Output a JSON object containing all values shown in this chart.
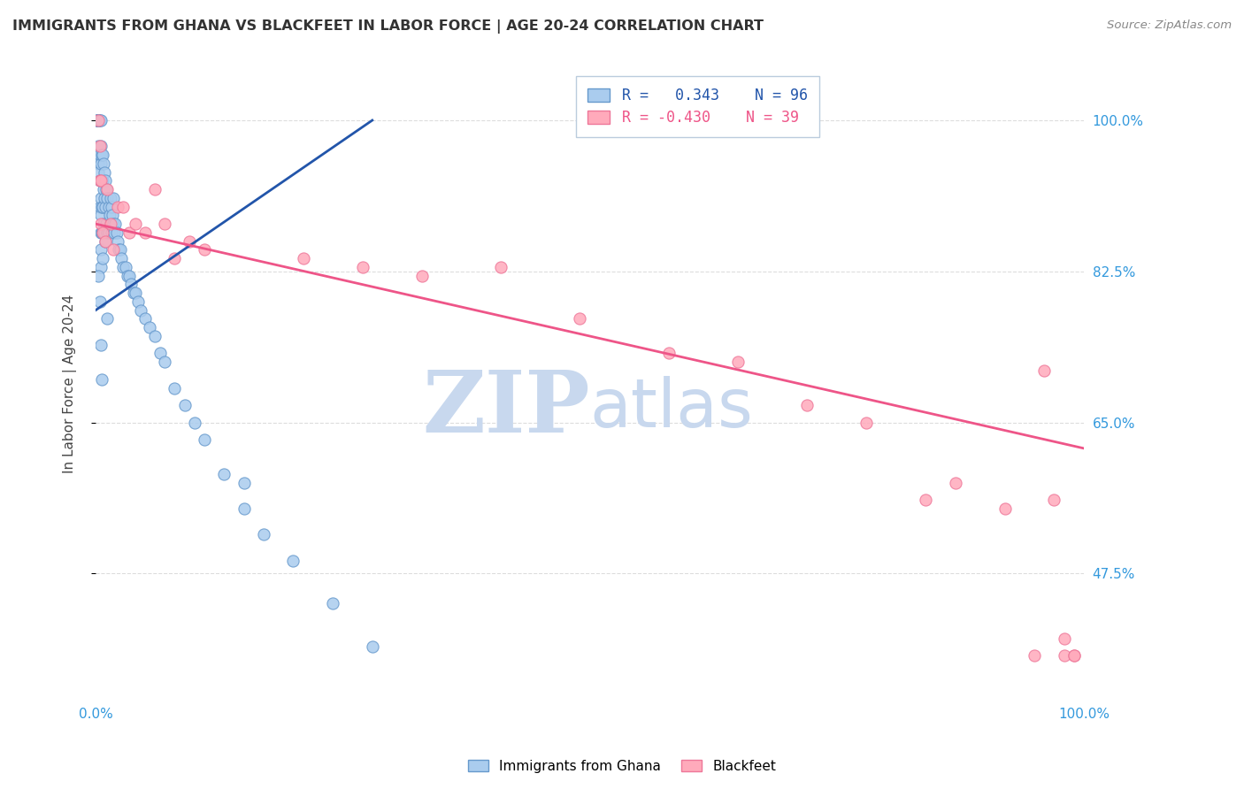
{
  "title": "IMMIGRANTS FROM GHANA VS BLACKFEET IN LABOR FORCE | AGE 20-24 CORRELATION CHART",
  "source": "Source: ZipAtlas.com",
  "ylabel": "In Labor Force | Age 20-24",
  "xlim": [
    0.0,
    1.0
  ],
  "ylim": [
    0.33,
    1.06
  ],
  "yticks": [
    0.475,
    0.65,
    0.825,
    1.0
  ],
  "ytick_labels": [
    "47.5%",
    "65.0%",
    "82.5%",
    "100.0%"
  ],
  "ghana_R": 0.343,
  "ghana_N": 96,
  "blackfeet_R": -0.43,
  "blackfeet_N": 39,
  "ghana_color": "#aaccee",
  "ghana_edge_color": "#6699cc",
  "ghana_line_color": "#2255aa",
  "blackfeet_color": "#ffaabb",
  "blackfeet_edge_color": "#ee7799",
  "blackfeet_line_color": "#ee5588",
  "watermark_zip_color": "#c8d8ee",
  "watermark_atlas_color": "#c8d8ee",
  "title_color": "#333333",
  "axis_label_color": "#444444",
  "right_tick_color": "#3399dd",
  "bottom_tick_color": "#3399dd",
  "grid_color": "#dddddd",
  "background_color": "#ffffff",
  "ghana_x": [
    0.002,
    0.002,
    0.002,
    0.002,
    0.003,
    0.003,
    0.003,
    0.003,
    0.003,
    0.003,
    0.003,
    0.003,
    0.003,
    0.003,
    0.004,
    0.004,
    0.004,
    0.004,
    0.005,
    0.005,
    0.005,
    0.005,
    0.005,
    0.005,
    0.005,
    0.005,
    0.005,
    0.006,
    0.006,
    0.006,
    0.006,
    0.007,
    0.007,
    0.007,
    0.007,
    0.007,
    0.008,
    0.008,
    0.008,
    0.009,
    0.009,
    0.009,
    0.01,
    0.01,
    0.01,
    0.011,
    0.011,
    0.012,
    0.012,
    0.013,
    0.013,
    0.014,
    0.015,
    0.015,
    0.016,
    0.016,
    0.017,
    0.018,
    0.018,
    0.019,
    0.02,
    0.021,
    0.022,
    0.023,
    0.025,
    0.026,
    0.028,
    0.03,
    0.032,
    0.034,
    0.036,
    0.038,
    0.04,
    0.043,
    0.046,
    0.05,
    0.055,
    0.06,
    0.065,
    0.07,
    0.08,
    0.09,
    0.1,
    0.11,
    0.13,
    0.15,
    0.17,
    0.2,
    0.24,
    0.28,
    0.012,
    0.15,
    0.003,
    0.004,
    0.005,
    0.006
  ],
  "ghana_y": [
    1.0,
    1.0,
    1.0,
    1.0,
    1.0,
    1.0,
    1.0,
    1.0,
    1.0,
    1.0,
    0.97,
    0.96,
    0.95,
    0.94,
    1.0,
    0.96,
    0.93,
    0.9,
    1.0,
    0.97,
    0.95,
    0.93,
    0.91,
    0.89,
    0.87,
    0.85,
    0.83,
    0.96,
    0.93,
    0.9,
    0.87,
    0.96,
    0.93,
    0.9,
    0.87,
    0.84,
    0.95,
    0.92,
    0.88,
    0.94,
    0.91,
    0.87,
    0.93,
    0.9,
    0.86,
    0.92,
    0.88,
    0.91,
    0.87,
    0.9,
    0.87,
    0.89,
    0.91,
    0.88,
    0.9,
    0.87,
    0.89,
    0.91,
    0.88,
    0.87,
    0.88,
    0.87,
    0.86,
    0.85,
    0.85,
    0.84,
    0.83,
    0.83,
    0.82,
    0.82,
    0.81,
    0.8,
    0.8,
    0.79,
    0.78,
    0.77,
    0.76,
    0.75,
    0.73,
    0.72,
    0.69,
    0.67,
    0.65,
    0.63,
    0.59,
    0.55,
    0.52,
    0.49,
    0.44,
    0.39,
    0.77,
    0.58,
    0.82,
    0.79,
    0.74,
    0.7
  ],
  "blackfeet_x": [
    0.003,
    0.004,
    0.004,
    0.005,
    0.005,
    0.007,
    0.01,
    0.012,
    0.015,
    0.018,
    0.022,
    0.028,
    0.034,
    0.04,
    0.05,
    0.06,
    0.07,
    0.08,
    0.095,
    0.11,
    0.21,
    0.27,
    0.33,
    0.41,
    0.49,
    0.58,
    0.65,
    0.72,
    0.78,
    0.84,
    0.87,
    0.92,
    0.95,
    0.96,
    0.97,
    0.98,
    0.98,
    0.99,
    0.99
  ],
  "blackfeet_y": [
    1.0,
    0.97,
    0.93,
    0.93,
    0.88,
    0.87,
    0.86,
    0.92,
    0.88,
    0.85,
    0.9,
    0.9,
    0.87,
    0.88,
    0.87,
    0.92,
    0.88,
    0.84,
    0.86,
    0.85,
    0.84,
    0.83,
    0.82,
    0.83,
    0.77,
    0.73,
    0.72,
    0.67,
    0.65,
    0.56,
    0.58,
    0.55,
    0.38,
    0.71,
    0.56,
    0.38,
    0.4,
    0.38,
    0.38
  ],
  "ghana_line_x": [
    0.0,
    0.28
  ],
  "ghana_line_y_start": 0.78,
  "ghana_line_y_end": 1.0,
  "blackfeet_line_x": [
    0.0,
    1.0
  ],
  "blackfeet_line_y_start": 0.88,
  "blackfeet_line_y_end": 0.62
}
